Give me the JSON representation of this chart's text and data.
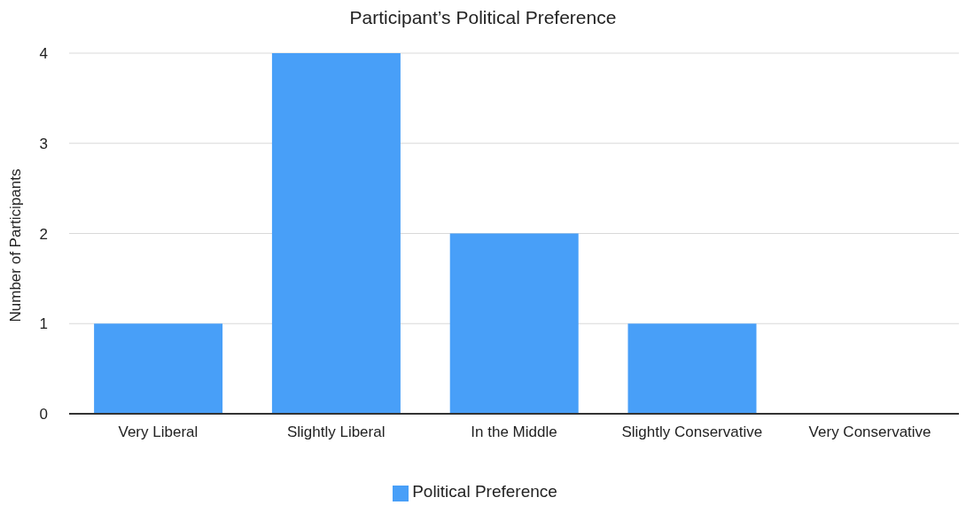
{
  "chart_data": {
    "type": "bar",
    "title": "Participant’s Political Preference",
    "ylabel": "Number of Participants",
    "categories": [
      "Very Liberal",
      "Slightly Liberal",
      "In the Middle",
      "Slightly Conservative",
      "Very Conservative"
    ],
    "series": [
      {
        "name": "Political Preference",
        "color": "#489ff8",
        "values": [
          1,
          4,
          2,
          1,
          0
        ]
      }
    ],
    "ylim": [
      0,
      4
    ],
    "yticks": [
      0,
      1,
      2,
      3,
      4
    ],
    "grid": "y",
    "legend": "bottom"
  }
}
